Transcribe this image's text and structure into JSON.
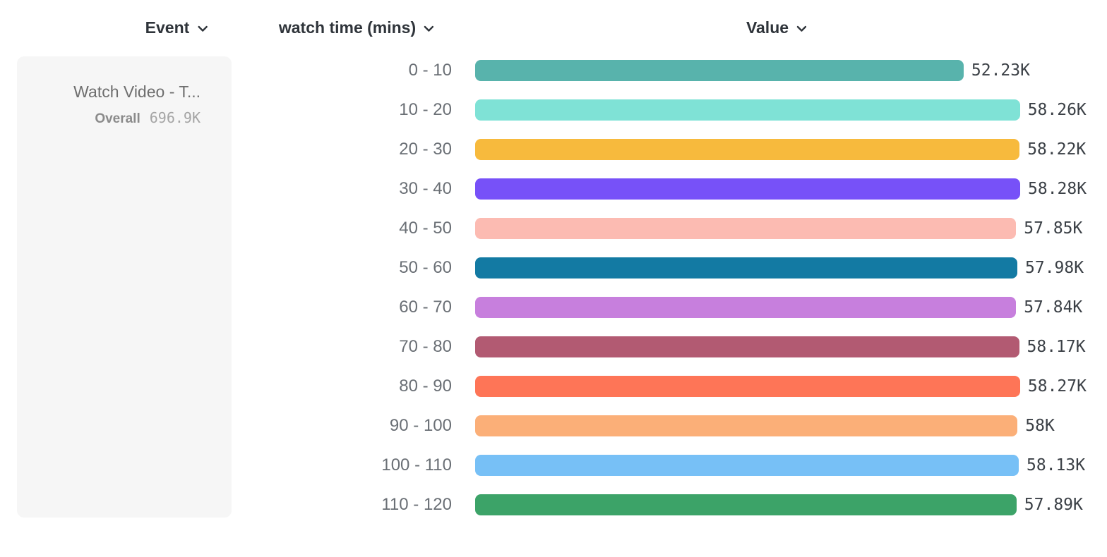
{
  "header": {
    "event_label": "Event",
    "breakdown_label": "watch time (mins)",
    "value_label": "Value"
  },
  "event_card": {
    "title": "Watch Video - T...",
    "overall_label": "Overall",
    "overall_value": "696.9K"
  },
  "chart_data": {
    "type": "bar",
    "orientation": "horizontal",
    "title": "",
    "xlabel": "",
    "ylabel": "watch time (mins)",
    "grid": false,
    "legend": false,
    "xlim": [
      0,
      58280
    ],
    "categories": [
      "0 - 10",
      "10 - 20",
      "20 - 30",
      "30 - 40",
      "40 - 50",
      "50 - 60",
      "60 - 70",
      "70 - 80",
      "80 - 90",
      "90 - 100",
      "100 - 110",
      "110 - 120"
    ],
    "values": [
      52230,
      58260,
      58220,
      58280,
      57850,
      57980,
      57840,
      58170,
      58270,
      58000,
      58130,
      57890
    ],
    "value_labels": [
      "52.23K",
      "58.26K",
      "58.22K",
      "58.28K",
      "57.85K",
      "57.98K",
      "57.84K",
      "58.17K",
      "58.27K",
      "58K",
      "58.13K",
      "57.89K"
    ],
    "bar_colors": [
      "#58B3AC",
      "#7FE2D6",
      "#F7BA3D",
      "#7751F8",
      "#FCBBB2",
      "#137AA3",
      "#C77FDD",
      "#B25A72",
      "#FE7557",
      "#FBAF78",
      "#77C0F6",
      "#3CA368"
    ]
  }
}
